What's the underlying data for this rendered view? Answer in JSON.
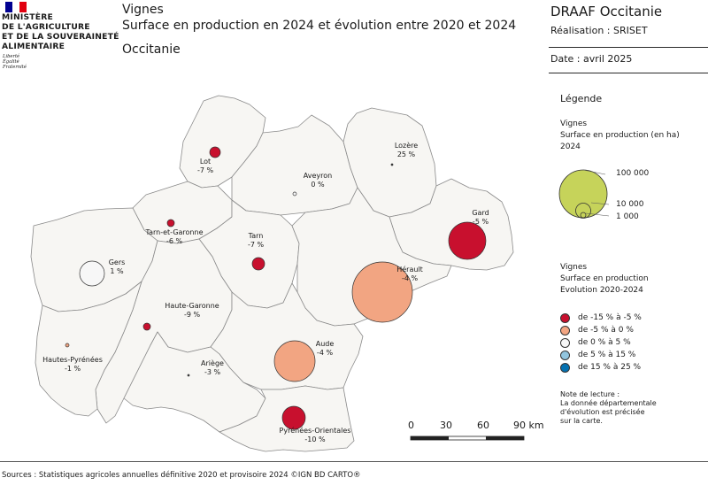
{
  "header": {
    "ministry_lines": [
      "MINISTÈRE",
      "DE L'AGRICULTURE",
      "ET DE LA SOUVERAINETÉ",
      "ALIMENTAIRE"
    ],
    "motto_lines": [
      "Liberté",
      "Égalité",
      "Fraternité"
    ],
    "title_lines": [
      "Vignes",
      "Surface en production en 2024 et évolution entre 2020 et 2024"
    ],
    "region": "Occitanie",
    "org": "DRAAF Occitanie",
    "credit": "Réalisation : SRISET",
    "date": "Date : avril 2025"
  },
  "legend": {
    "title": "Légende",
    "size_block": {
      "lines": [
        "Vignes",
        "Surface en production (en ha)",
        "2024"
      ],
      "values": [
        "100 000",
        "10 000",
        "1 000"
      ]
    },
    "class_block": {
      "lines": [
        "Vignes",
        "Surface en production",
        "Evolution 2020-2024"
      ],
      "classes": [
        {
          "label": "de -15 % à -5 %",
          "color": "#c8102e"
        },
        {
          "label": "de -5 % à 0 %",
          "color": "#f2a582"
        },
        {
          "label": "de 0 % à 5 %",
          "color": "#f7f7f7"
        },
        {
          "label": "de 5 % à 15 %",
          "color": "#92c5de"
        },
        {
          "label": "de 15 % à 25 %",
          "color": "#0571b0"
        }
      ]
    },
    "note_lines": [
      "Note de lecture :",
      "La donnée départementale",
      "d'évolution est précisée",
      "sur la carte."
    ]
  },
  "scale": {
    "ticks": [
      "0",
      "30",
      "60",
      "90 km"
    ]
  },
  "departments": [
    {
      "name": "Lot",
      "change": "-7 %",
      "class": 0
    },
    {
      "name": "Aveyron",
      "change": "0 %",
      "class": 2
    },
    {
      "name": "Lozère",
      "change": "25 %",
      "class": 4
    },
    {
      "name": "Gard",
      "change": "-5 %",
      "class": 0
    },
    {
      "name": "Tarn-et-Garonne",
      "change": "-6 %",
      "class": 0
    },
    {
      "name": "Tarn",
      "change": "-7 %",
      "class": 0
    },
    {
      "name": "Gers",
      "change": "1 %",
      "class": 2
    },
    {
      "name": "Hérault",
      "change": "-4 %",
      "class": 1
    },
    {
      "name": "Haute-Garonne",
      "change": "-9 %",
      "class": 0
    },
    {
      "name": "Aude",
      "change": "-4 %",
      "class": 1
    },
    {
      "name": "Hautes-Pyrénées",
      "change": "-1 %",
      "class": 1
    },
    {
      "name": "Ariège",
      "change": "-3 %",
      "class": 1
    },
    {
      "name": "Pyrénées-Orientales",
      "change": "-10 %",
      "class": 0
    }
  ],
  "sources": "Sources : Statistiques agricoles annuelles définitive 2020 et provisoire 2024 ©IGN BD CARTO®",
  "colors": {
    "map_fill": "#f7f6f3",
    "border": "#8a8a8a",
    "flag_blue": "#000091",
    "flag_red": "#e1000f",
    "size_legend_fill": "#c6d35a"
  }
}
